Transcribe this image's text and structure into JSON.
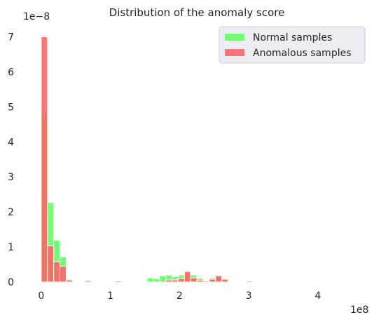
{
  "chart_data": {
    "type": "histogram",
    "title": "Distribution of the anomaly score",
    "xlabel": "",
    "ylabel": "",
    "x_multiplier_label": "1e8",
    "y_multiplier_label": "1e−8",
    "xlim": [
      -0.12,
      4.75
    ],
    "ylim": [
      0,
      7.25
    ],
    "xticks": [
      0,
      1,
      2,
      3,
      4
    ],
    "yticks": [
      0,
      1,
      2,
      3,
      4,
      5,
      6,
      7
    ],
    "bin_width": 0.09,
    "bin_starts": [
      0.0,
      0.09,
      0.18,
      0.27,
      0.36,
      0.45,
      0.54,
      0.63,
      0.72,
      0.81,
      0.9,
      0.99,
      1.08,
      1.17,
      1.26,
      1.35,
      1.44,
      1.53,
      1.62,
      1.71,
      1.8,
      1.89,
      1.98,
      2.07,
      2.16,
      2.25,
      2.34,
      2.43,
      2.52,
      2.61,
      2.7,
      2.79,
      2.88,
      2.97
    ],
    "grid": false,
    "legend_position": "top-right",
    "series": [
      {
        "name": "Normal samples",
        "color": "#66ff66",
        "values": [
          4.85,
          2.27,
          1.2,
          0.72,
          0.05,
          0.0,
          0.0,
          0.0,
          0.0,
          0.0,
          0.0,
          0.0,
          0.0,
          0.0,
          0.0,
          0.0,
          0.0,
          0.12,
          0.1,
          0.18,
          0.2,
          0.15,
          0.2,
          0.22,
          0.2,
          0.1,
          0.05,
          0.12,
          0.12,
          0.05,
          0.0,
          0.0,
          0.0,
          0.0
        ]
      },
      {
        "name": "Anomalous samples",
        "color": "#ff6666",
        "values": [
          7.0,
          1.03,
          0.58,
          0.45,
          0.06,
          0.0,
          0.0,
          0.04,
          0.0,
          0.0,
          0.0,
          0.0,
          0.03,
          0.0,
          0.0,
          0.0,
          0.0,
          0.0,
          0.0,
          0.0,
          0.06,
          0.06,
          0.1,
          0.3,
          0.12,
          0.05,
          0.03,
          0.08,
          0.18,
          0.08,
          0.0,
          0.0,
          0.0,
          0.03
        ]
      }
    ]
  }
}
